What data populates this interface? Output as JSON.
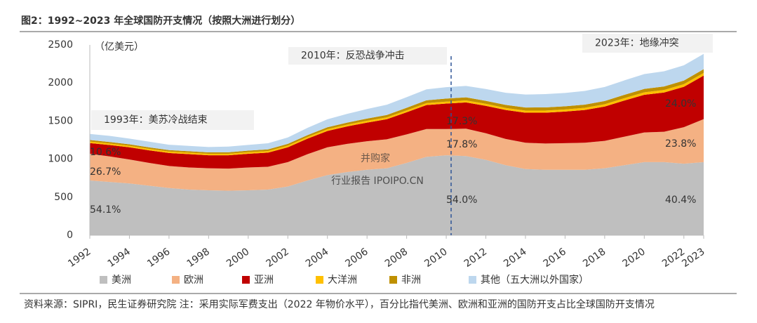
{
  "chart_data": {
    "type": "stacked-area",
    "title": "图2：1992~2023 年全球国防开支情况（按照大洲进行划分）",
    "y_unit": "（亿美元）",
    "x": [
      1992,
      1993,
      1994,
      1995,
      1996,
      1997,
      1998,
      1999,
      2000,
      2001,
      2002,
      2003,
      2004,
      2005,
      2006,
      2007,
      2008,
      2009,
      2010,
      2011,
      2012,
      2013,
      2014,
      2015,
      2016,
      2017,
      2018,
      2019,
      2020,
      2021,
      2022,
      2023
    ],
    "xlim": [
      1992,
      2023
    ],
    "xticks": [
      1992,
      1994,
      1996,
      1998,
      2000,
      2002,
      2004,
      2006,
      2008,
      2010,
      2012,
      2014,
      2016,
      2018,
      2020,
      2022,
      2023
    ],
    "ylim": [
      0,
      2500
    ],
    "yticks": [
      0,
      500,
      1000,
      1500,
      2000,
      2500
    ],
    "series": [
      {
        "name": "美洲",
        "color": "#bfbfbf",
        "values": [
          720,
          700,
          680,
          650,
          620,
          600,
          590,
          585,
          590,
          600,
          640,
          720,
          790,
          830,
          860,
          880,
          950,
          1030,
          1050,
          1040,
          990,
          920,
          870,
          860,
          860,
          860,
          880,
          920,
          960,
          960,
          940,
          960
        ]
      },
      {
        "name": "欧洲",
        "color": "#f4b183",
        "values": [
          350,
          335,
          315,
          300,
          290,
          290,
          290,
          290,
          300,
          300,
          320,
          345,
          365,
          370,
          375,
          380,
          375,
          365,
          345,
          360,
          350,
          345,
          345,
          345,
          350,
          355,
          360,
          375,
          390,
          400,
          480,
          566
        ]
      },
      {
        "name": "亚洲",
        "color": "#c00000",
        "values": [
          141,
          150,
          160,
          165,
          170,
          175,
          170,
          175,
          180,
          185,
          195,
          205,
          215,
          230,
          245,
          265,
          290,
          315,
          335,
          345,
          360,
          380,
          395,
          405,
          415,
          430,
          450,
          475,
          495,
          515,
          530,
          571
        ]
      },
      {
        "name": "大洋洲",
        "color": "#ffc000",
        "values": [
          20,
          20,
          20,
          20,
          20,
          20,
          20,
          20,
          21,
          21,
          22,
          22,
          23,
          23,
          24,
          24,
          25,
          25,
          25,
          26,
          26,
          27,
          27,
          28,
          28,
          29,
          30,
          31,
          32,
          33,
          34,
          35
        ]
      },
      {
        "name": "非洲",
        "color": "#bf9000",
        "values": [
          20,
          20,
          20,
          19,
          19,
          19,
          19,
          20,
          21,
          22,
          23,
          24,
          25,
          27,
          29,
          31,
          34,
          37,
          40,
          41,
          40,
          40,
          41,
          41,
          41,
          42,
          43,
          44,
          45,
          46,
          48,
          50
        ]
      },
      {
        "name": "其他（五大洲以外国家）",
        "color": "#bdd7ee",
        "values": [
          80,
          80,
          75,
          75,
          70,
          70,
          70,
          75,
          75,
          80,
          85,
          95,
          105,
          115,
          125,
          135,
          140,
          145,
          150,
          150,
          155,
          160,
          170,
          175,
          175,
          180,
          185,
          190,
          195,
          200,
          200,
          200
        ]
      }
    ],
    "annotations": [
      "1993年：美苏冷战结束",
      "2010年：反恐战争冲击",
      "2023年：地缘冲突"
    ],
    "share_labels": [
      "54.1%",
      "26.7%",
      "10.6%",
      "54.0%",
      "17.8%",
      "17.3%",
      "40.4%",
      "23.8%",
      "24.0%"
    ],
    "watermark": [
      "并购家",
      "行业报告 IPOIPO.CN"
    ],
    "note": "资料来源：SIPRI，民生证券研究院   注：采用实际军费支出（2022 年物价水平），百分比指代美洲、欧洲和亚洲的国防开支占比全球国防开支情况"
  }
}
